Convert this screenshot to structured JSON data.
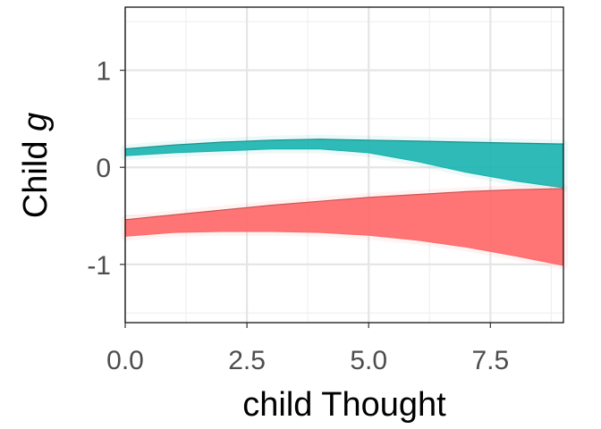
{
  "chart_data": {
    "type": "area",
    "title": "",
    "xlabel": "child Thought",
    "ylabel": {
      "text": "Child ",
      "italic_symbol": "g"
    },
    "xlim": [
      0,
      9
    ],
    "ylim": [
      -1.6,
      1.65
    ],
    "x_ticks": [
      0.0,
      2.5,
      5.0,
      7.5
    ],
    "x_tick_labels": [
      "0.0",
      "2.5",
      "5.0",
      "7.5"
    ],
    "y_ticks": [
      -1,
      0,
      1
    ],
    "y_tick_labels": [
      "-1",
      "0",
      "1"
    ],
    "grid": true,
    "legend": "none",
    "series": [
      {
        "color": "#1fb5b1",
        "x": [
          0,
          1,
          2,
          3,
          4,
          5,
          6,
          7,
          8,
          9
        ],
        "upper": [
          0.19,
          0.23,
          0.26,
          0.28,
          0.29,
          0.28,
          0.27,
          0.26,
          0.25,
          0.24
        ],
        "lower": [
          0.12,
          0.15,
          0.17,
          0.19,
          0.19,
          0.15,
          0.06,
          -0.05,
          -0.14,
          -0.21
        ]
      },
      {
        "color": "#ff6b6b",
        "x": [
          0,
          1,
          2,
          3,
          4,
          5,
          6,
          7,
          8,
          9
        ],
        "upper": [
          -0.54,
          -0.49,
          -0.44,
          -0.39,
          -0.35,
          -0.31,
          -0.28,
          -0.25,
          -0.23,
          -0.22
        ],
        "lower": [
          -0.71,
          -0.67,
          -0.66,
          -0.66,
          -0.67,
          -0.7,
          -0.75,
          -0.82,
          -0.91,
          -1.01
        ]
      }
    ]
  },
  "colors": {
    "panel_background": "#ffffff",
    "grid_major": "#e5e5e5",
    "grid_minor": "#f0f0f0",
    "panel_border": "#000000"
  }
}
